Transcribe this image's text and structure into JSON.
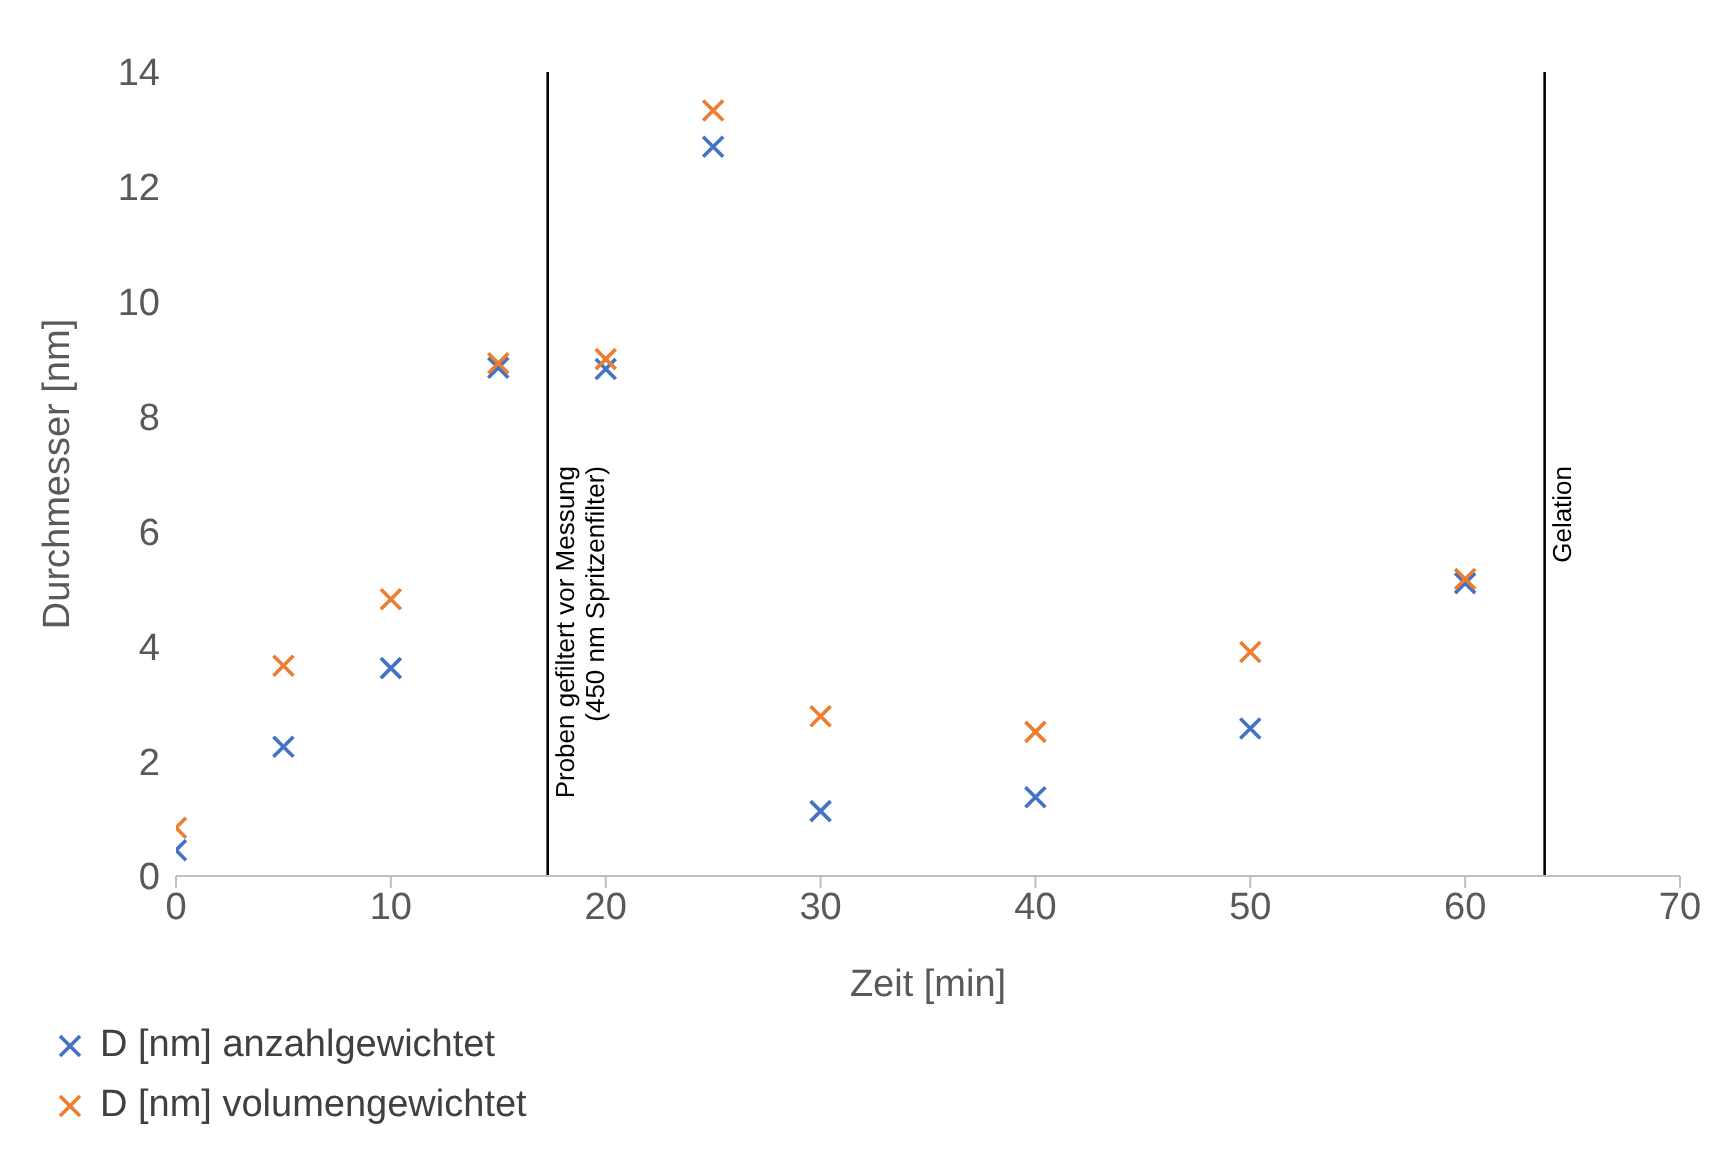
{
  "chart_data": {
    "type": "scatter",
    "xlabel": "Zeit [min]",
    "ylabel": "Durchmesser [nm]",
    "x": [
      0,
      5,
      10,
      15,
      20,
      25,
      30,
      40,
      50,
      60
    ],
    "series": [
      {
        "name": "D [nm] anzahlgewichtet",
        "color": "#4472c4",
        "values": [
          0.45,
          2.25,
          3.62,
          8.85,
          8.83,
          12.7,
          1.13,
          1.37,
          2.57,
          5.1
        ]
      },
      {
        "name": "D [nm] volumengewichtet",
        "color": "#ed7d31",
        "values": [
          0.84,
          3.66,
          4.82,
          8.93,
          9.0,
          13.33,
          2.78,
          2.51,
          3.9,
          5.17
        ]
      }
    ],
    "xlim": [
      0,
      70
    ],
    "xticks": [
      0,
      10,
      20,
      30,
      40,
      50,
      60,
      70
    ],
    "ylim": [
      0,
      14
    ],
    "yticks": [
      0,
      2,
      4,
      6,
      8,
      10,
      12,
      14
    ],
    "ref_lines": [
      {
        "axis": "x",
        "value": 17.3,
        "label": "Proben gefiltert vor Messung\n(450 nm Spritzenfilter)",
        "color": "#000000"
      },
      {
        "axis": "x",
        "value": 63.7,
        "label": "Gelation",
        "color": "#000000"
      }
    ],
    "grid": false,
    "legend": "bottom left",
    "marker": "cross"
  }
}
